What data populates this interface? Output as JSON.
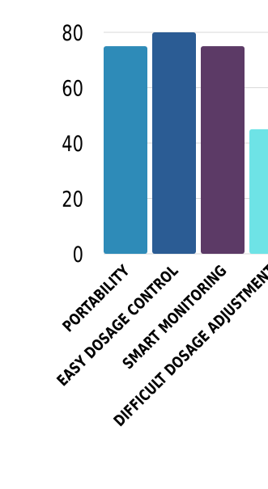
{
  "chart_data": {
    "type": "bar",
    "categories": [
      "PORTABILITY",
      "EASY DOSAGE CONTROL",
      "SMART MONITORING",
      "DIFFICULT DOSAGE ADJUSTMENT"
    ],
    "values": [
      75,
      80,
      75,
      45
    ],
    "colors": [
      "#2e8bb8",
      "#2b5c94",
      "#5c3a66",
      "#6ee3e6"
    ],
    "yticks": [
      0,
      20,
      40,
      60,
      80
    ],
    "ylim": [
      0,
      80
    ],
    "grid": true
  }
}
